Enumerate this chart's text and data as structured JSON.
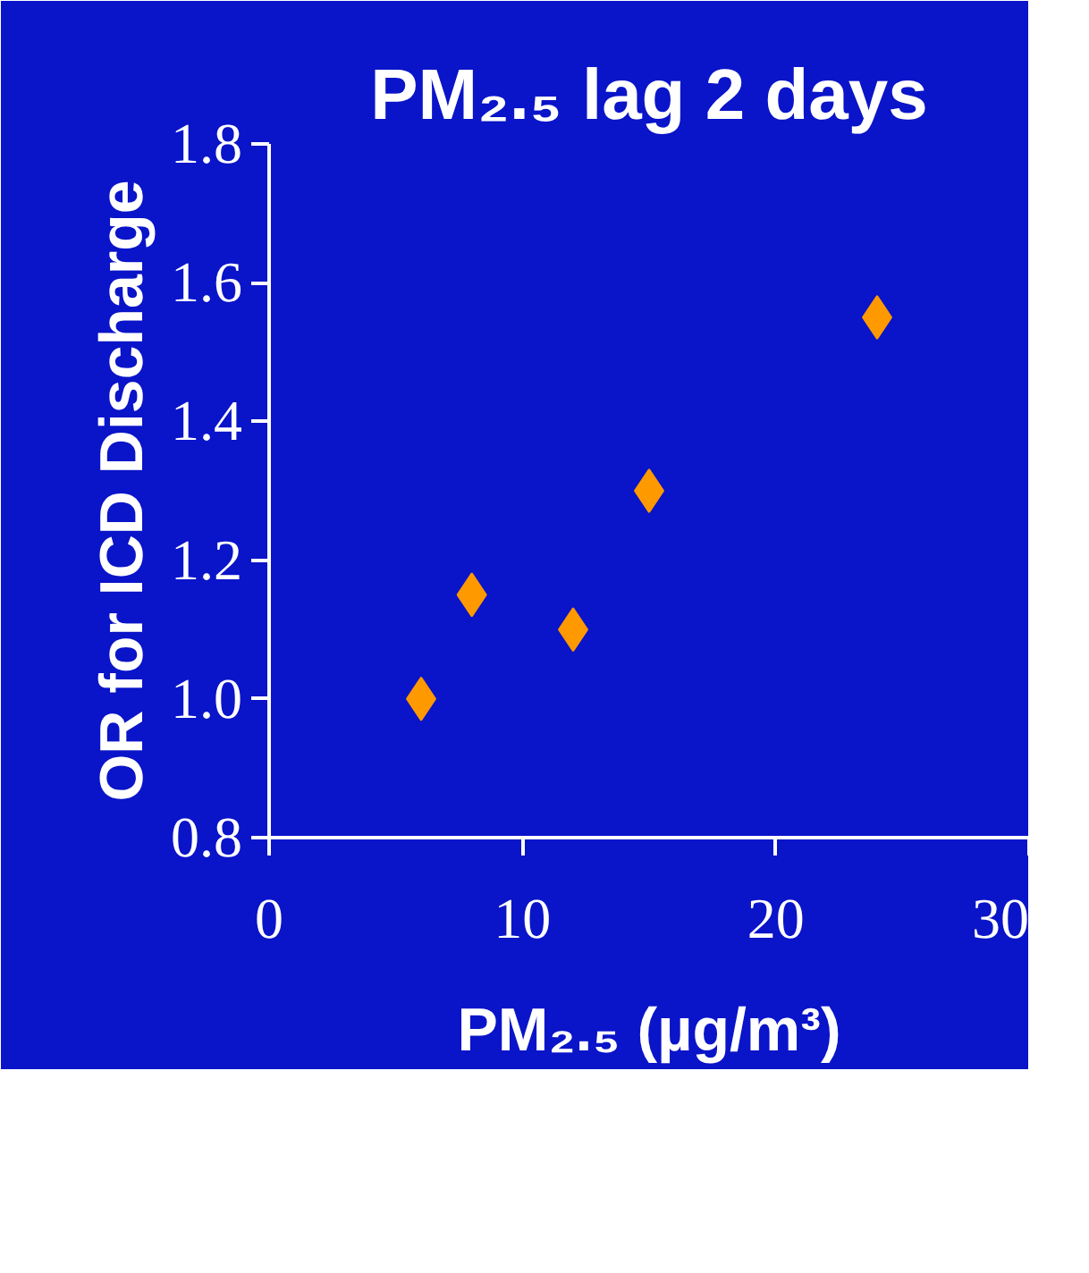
{
  "chart_data": {
    "type": "scatter",
    "title": "PM₂.₅ lag 2 days",
    "xlabel": "PM₂.₅ (µg/m³)",
    "ylabel": "OR for ICD Discharge",
    "x": [
      6,
      8,
      12,
      15,
      24
    ],
    "series": [
      {
        "color": "#ff9900",
        "values": [
          1.0,
          1.15,
          1.1,
          1.3,
          1.55
        ]
      }
    ],
    "xlim": [
      0,
      30
    ],
    "xticks": [
      0,
      10,
      20,
      30
    ],
    "ylim": [
      0.8,
      1.8
    ],
    "yticks": [
      {
        "value": 0.8,
        "label": "0.8"
      },
      {
        "value": 1.0,
        "label": "1.0"
      },
      {
        "value": 1.2,
        "label": "1.2"
      },
      {
        "value": 1.4,
        "label": "1.4"
      },
      {
        "value": 1.6,
        "label": "1.6"
      },
      {
        "value": 1.8,
        "label": "1.8"
      }
    ],
    "marker": "diamond",
    "grid": false
  }
}
